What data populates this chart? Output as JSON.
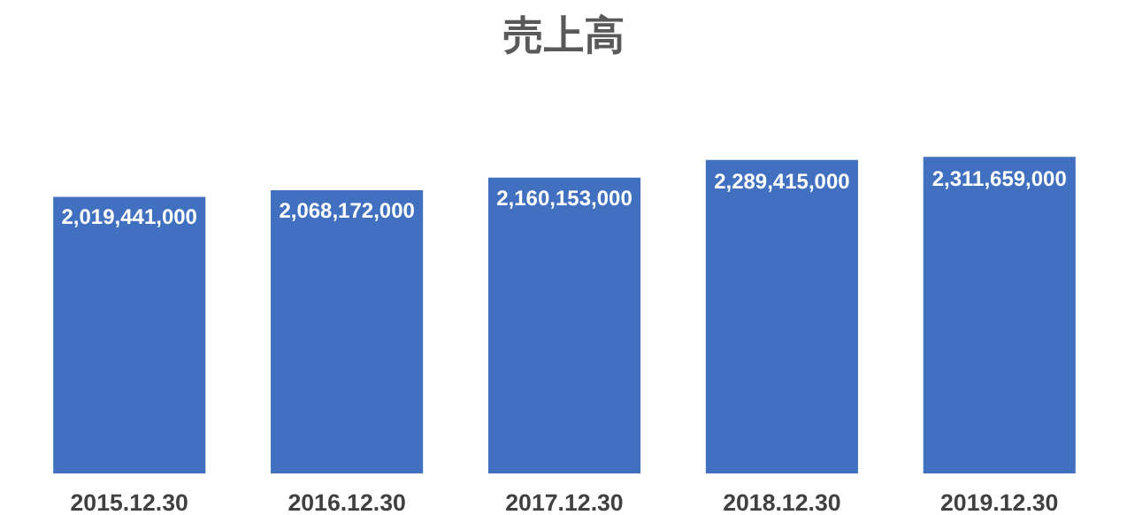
{
  "chart_data": {
    "type": "bar",
    "title": "売上高",
    "categories": [
      "2015.12.30",
      "2016.12.30",
      "2017.12.30",
      "2018.12.30",
      "2019.12.30"
    ],
    "values": [
      2019441000,
      2068172000,
      2160153000,
      2289415000,
      2311659000
    ],
    "value_labels": [
      "2,019,441,000",
      "2,068,172,000",
      "2,160,153,000",
      "2,289,415,000",
      "2,311,659,000"
    ],
    "color": "#4170c0",
    "grid": false
  }
}
